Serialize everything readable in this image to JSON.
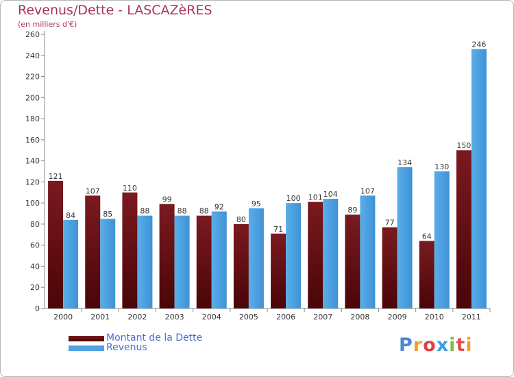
{
  "chart_data": {
    "type": "bar",
    "title": "Revenus/Dette - LASCAZèRES",
    "subtitle": "(en milliers d'€)",
    "categories": [
      "2000",
      "2001",
      "2002",
      "2003",
      "2004",
      "2005",
      "2006",
      "2007",
      "2008",
      "2009",
      "2010",
      "2011"
    ],
    "series": [
      {
        "name": "Montant de la Dette",
        "values": [
          121,
          107,
          110,
          99,
          88,
          80,
          71,
          101,
          89,
          77,
          64,
          150
        ],
        "color": "#6e0f14"
      },
      {
        "name": "Revenus",
        "values": [
          84,
          85,
          88,
          88,
          92,
          95,
          100,
          104,
          107,
          134,
          130,
          246
        ],
        "color": "#4ea3e0"
      }
    ],
    "ylim": [
      0,
      260
    ],
    "yticks": [
      0,
      20,
      40,
      60,
      80,
      100,
      120,
      140,
      160,
      180,
      200,
      220,
      240,
      260
    ],
    "grid": false,
    "legend": "bottom-left"
  },
  "logo": {
    "letters": [
      "P",
      "r",
      "o",
      "x",
      "i",
      "t",
      "i"
    ],
    "colors": [
      "#4a86d4",
      "#f0a020",
      "#e04040",
      "#3aa0e0",
      "#7ac142",
      "#e05050",
      "#f0a020"
    ]
  }
}
